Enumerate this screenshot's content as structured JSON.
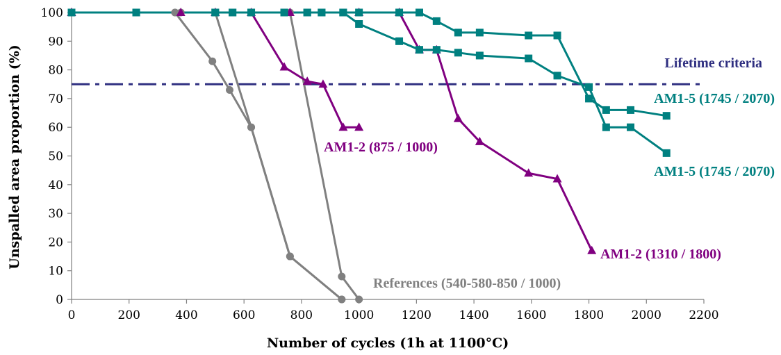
{
  "chart_data": {
    "type": "line",
    "title": "",
    "xlabel": "Number of cycles (1h at 1100°C)",
    "ylabel": "Unspalled area proportion (%)",
    "xlim": [
      0,
      2200
    ],
    "ylim": [
      0,
      100
    ],
    "xticks": [
      0,
      200,
      400,
      600,
      800,
      1000,
      1200,
      1400,
      1600,
      1800,
      2000,
      2200
    ],
    "yticks": [
      0,
      10,
      20,
      30,
      40,
      50,
      60,
      70,
      80,
      90,
      100
    ],
    "grid": false,
    "legend": "none",
    "colors": {
      "references": "#808080",
      "am1_2": "#800080",
      "am1_5": "#008080",
      "criteria": "#2e2e80"
    },
    "series": [
      {
        "group": "references",
        "marker": "circle",
        "x": [
          0,
          360,
          490,
          550,
          625,
          760,
          940
        ],
        "y": [
          100,
          100,
          83,
          73,
          60,
          15,
          0
        ]
      },
      {
        "group": "references",
        "marker": "circle",
        "x": [
          0,
          360,
          500,
          625,
          760,
          940
        ],
        "y": [
          100,
          100,
          100,
          60,
          15,
          0
        ]
      },
      {
        "group": "references",
        "marker": "circle",
        "x": [
          0,
          380,
          500,
          760,
          940,
          1000
        ],
        "y": [
          100,
          100,
          100,
          100,
          8,
          0
        ]
      },
      {
        "group": "am1_2",
        "marker": "triangle",
        "x": [
          0,
          380,
          500,
          625,
          740,
          820,
          875,
          945,
          1000
        ],
        "y": [
          100,
          100,
          100,
          100,
          81,
          76,
          75,
          60,
          60
        ]
      },
      {
        "group": "am1_2",
        "marker": "triangle",
        "x": [
          0,
          500,
          760,
          1000,
          1140,
          1210,
          1270,
          1345,
          1420,
          1590,
          1690,
          1810
        ],
        "y": [
          100,
          100,
          100,
          100,
          100,
          87,
          87,
          63,
          55,
          44,
          42,
          17
        ]
      },
      {
        "group": "am1_5",
        "marker": "square",
        "x": [
          0,
          225,
          500,
          560,
          625,
          740,
          820,
          870,
          945,
          1000,
          1140,
          1210,
          1270,
          1345,
          1420,
          1590,
          1690,
          1800,
          1860,
          1945,
          2070
        ],
        "y": [
          100,
          100,
          100,
          100,
          100,
          100,
          100,
          100,
          100,
          96,
          90,
          87,
          87,
          86,
          85,
          84,
          78,
          74,
          60,
          60,
          51
        ]
      },
      {
        "group": "am1_5",
        "marker": "square",
        "x": [
          0,
          225,
          500,
          560,
          625,
          740,
          820,
          870,
          945,
          1000,
          1140,
          1210,
          1270,
          1345,
          1420,
          1590,
          1690,
          1800,
          1860,
          1945,
          2070
        ],
        "y": [
          100,
          100,
          100,
          100,
          100,
          100,
          100,
          100,
          100,
          100,
          100,
          100,
          97,
          93,
          93,
          92,
          92,
          70,
          66,
          66,
          64
        ]
      }
    ],
    "reference_line": {
      "y": 75,
      "label": "Lifetime criteria"
    },
    "annotations": [
      {
        "text": "AM1-5 (1745 / 2070)",
        "group": "am1_5",
        "anchor": "upper"
      },
      {
        "text": "AM1-5 (1745 / 2070)",
        "group": "am1_5",
        "anchor": "lower"
      },
      {
        "text": "AM1-2 (875 / 1000)",
        "group": "am1_2",
        "anchor": "upper"
      },
      {
        "text": "AM1-2 (1310 / 1800)",
        "group": "am1_2",
        "anchor": "lower"
      },
      {
        "text": "References (540-580-850 / 1000)",
        "group": "references",
        "anchor": "bottom"
      }
    ]
  }
}
